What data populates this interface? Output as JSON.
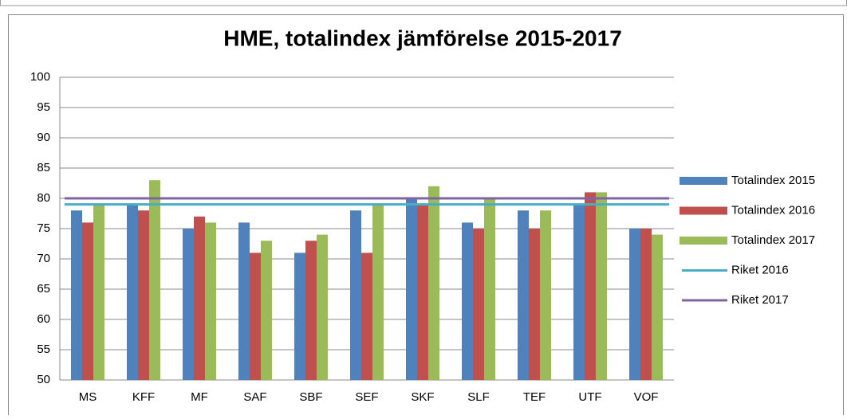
{
  "chart_data": {
    "type": "bar",
    "title": "HME, totalindex jämförelse 2015-2017",
    "categories": [
      "MS",
      "KFF",
      "MF",
      "SAF",
      "SBF",
      "SEF",
      "SKF",
      "SLF",
      "TEF",
      "UTF",
      "VOF"
    ],
    "series": [
      {
        "name": "Totalindex 2015",
        "color": "#4f81bd",
        "type": "bar",
        "values": [
          78,
          79,
          75,
          76,
          71,
          78,
          80,
          76,
          78,
          79,
          75
        ]
      },
      {
        "name": "Totalindex 2016",
        "color": "#c0504d",
        "type": "bar",
        "values": [
          76,
          78,
          77,
          71,
          73,
          71,
          79,
          75,
          75,
          81,
          75
        ]
      },
      {
        "name": "Totalindex 2017",
        "color": "#9bbb59",
        "type": "bar",
        "values": [
          79,
          83,
          76,
          73,
          74,
          79,
          82,
          80,
          78,
          81,
          74
        ]
      },
      {
        "name": "Riket 2016",
        "color": "#4bacc6",
        "type": "line",
        "values": [
          79,
          79,
          79,
          79,
          79,
          79,
          79,
          79,
          79,
          79,
          79
        ]
      },
      {
        "name": "Riket 2017",
        "color": "#8064a2",
        "type": "line",
        "values": [
          80,
          80,
          80,
          80,
          80,
          80,
          80,
          80,
          80,
          80,
          80
        ]
      }
    ],
    "ylim": [
      50,
      100
    ],
    "yticks": [
      50,
      55,
      60,
      65,
      70,
      75,
      80,
      85,
      90,
      95,
      100
    ],
    "grid": true,
    "legend": "right"
  }
}
